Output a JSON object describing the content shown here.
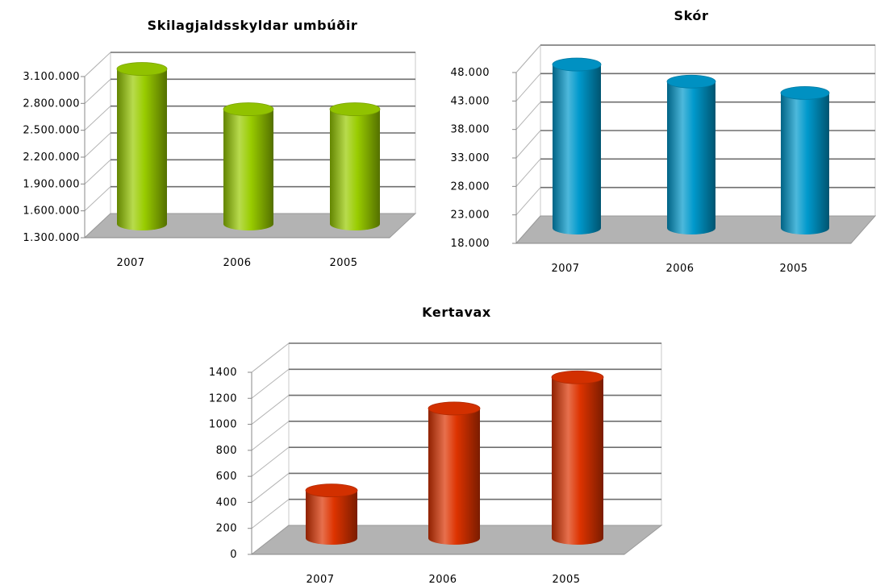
{
  "chart_data": [
    {
      "type": "bar",
      "title": "Skilagjaldsskyldar umbúðir",
      "categories": [
        "2007",
        "2006",
        "2005"
      ],
      "values": [
        3050000,
        2600000,
        2600000
      ],
      "ylim": [
        1300000,
        3100000
      ],
      "yticks": [
        "1.300.000",
        "1.600.000",
        "1.900.000",
        "2.200.000",
        "2.500.000",
        "2.800.000",
        "3.100.000"
      ],
      "color": "#99cc00",
      "grid": true,
      "legend": "none"
    },
    {
      "type": "bar",
      "title": "Skór",
      "categories": [
        "2007",
        "2006",
        "2005"
      ],
      "values": [
        47000,
        44000,
        42000
      ],
      "ylim": [
        18000,
        48000
      ],
      "yticks": [
        "18.000",
        "23.000",
        "28.000",
        "33.000",
        "38.000",
        "43.000",
        "48.000"
      ],
      "color": "#0099cc",
      "grid": true,
      "legend": "none"
    },
    {
      "type": "bar",
      "title": "Kertavax",
      "categories": [
        "2007",
        "2006",
        "2005"
      ],
      "values": [
        380,
        1010,
        1250
      ],
      "ylim": [
        0,
        1400
      ],
      "yticks": [
        "0",
        "200",
        "400",
        "600",
        "800",
        "1000",
        "1200",
        "1400"
      ],
      "color": "#dd3300",
      "grid": true,
      "legend": "none"
    }
  ]
}
